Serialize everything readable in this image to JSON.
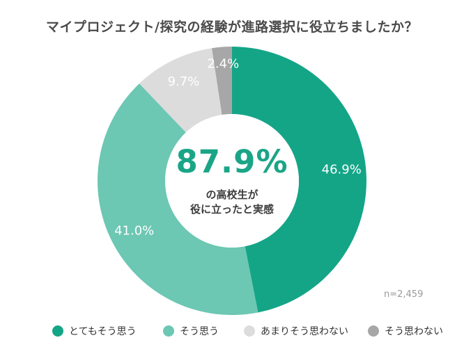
{
  "chart_data": {
    "type": "pie",
    "title": "マイプロジェクト/探究の経験が進路選択に役立ちましたか？",
    "categories": [
      "とてもそう思う",
      "そう思う",
      "あまりそう思わない",
      "そう思わない"
    ],
    "values": [
      46.9,
      41.0,
      9.7,
      2.4
    ],
    "data_labels": [
      "46.9%",
      "41.0%",
      "9.7%",
      "2.4%"
    ],
    "colors": [
      "#14a587",
      "#6cc7b3",
      "#dcdcdc",
      "#a7a7a7"
    ],
    "label_colors": [
      "#ffffff",
      "#ffffff",
      "#ffffff",
      "#ffffff"
    ],
    "donut": true,
    "center_value": "87.9%",
    "center_text": [
      "の高校生が",
      "役に立ったと実感"
    ],
    "sample_size": "n=2,459",
    "legend": "bottom"
  }
}
